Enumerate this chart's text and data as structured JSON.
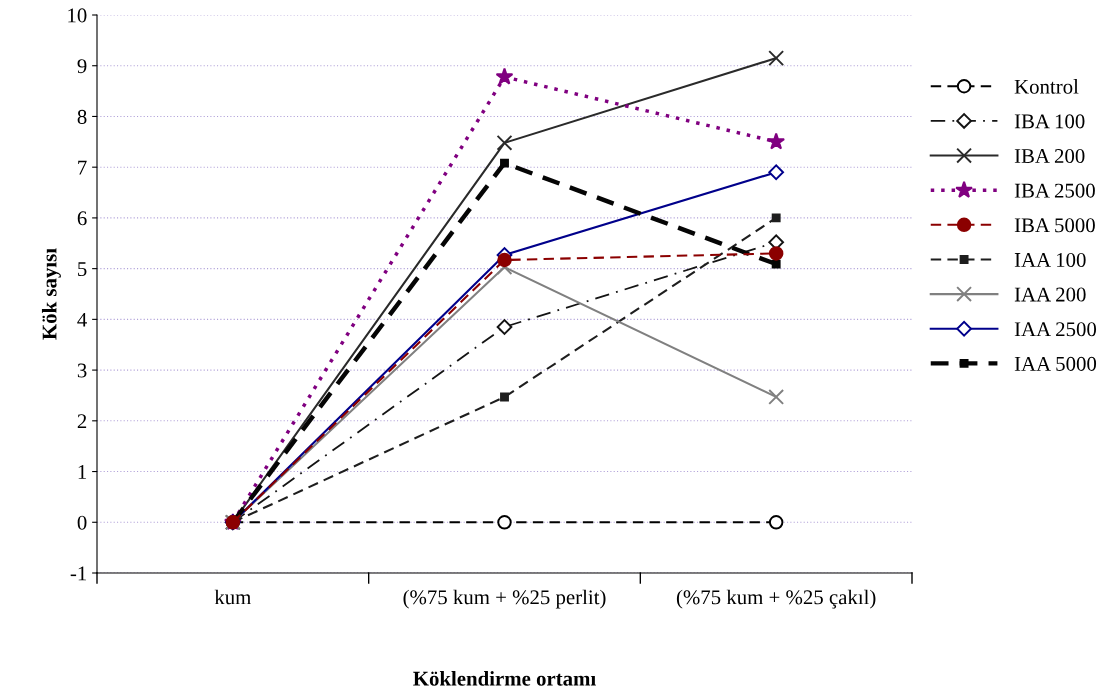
{
  "chart_data": {
    "type": "line",
    "xlabel": "Köklendirme ortamı",
    "ylabel": "Kök sayısı",
    "categories": [
      "kum",
      "(%75 kum + %25 perlit)",
      "(%75 kum + %25 çakıl)"
    ],
    "ylim": [
      -1,
      10
    ],
    "yticks": [
      -1,
      0,
      1,
      2,
      3,
      4,
      5,
      6,
      7,
      8,
      9,
      10
    ],
    "grid": "y",
    "legend": "right",
    "series": [
      {
        "name": "Kontrol",
        "color": "#000000",
        "values": [
          0,
          0,
          0
        ],
        "line_style": "dashed",
        "marker": "circle"
      },
      {
        "name": "IBA 100",
        "color": "#141414",
        "values": [
          0,
          3.85,
          5.52
        ],
        "line_style": "dashdot",
        "marker": "diamond"
      },
      {
        "name": "IBA 200",
        "color": "#2a2a2a",
        "values": [
          0,
          7.48,
          9.15
        ],
        "line_style": "solid",
        "marker": "cross"
      },
      {
        "name": "IBA 2500",
        "color": "#800080",
        "values": [
          0,
          8.78,
          7.5
        ],
        "line_style": "dotted",
        "marker": "star"
      },
      {
        "name": "IBA 5000",
        "color": "#8b0000",
        "values": [
          0,
          5.17,
          5.3
        ],
        "line_style": "dashed",
        "marker": "circle"
      },
      {
        "name": "IAA 100",
        "color": "#1e1e1e",
        "values": [
          0,
          2.47,
          6.0
        ],
        "line_style": "dashed",
        "marker": "square"
      },
      {
        "name": "IAA 200",
        "color": "#808080",
        "values": [
          0,
          5.03,
          2.47
        ],
        "line_style": "solid",
        "marker": "cross"
      },
      {
        "name": "IAA 2500",
        "color": "#00008b",
        "values": [
          0,
          5.27,
          6.9
        ],
        "line_style": "solid",
        "marker": "diamond"
      },
      {
        "name": "IAA 5000",
        "color": "#050505",
        "values": [
          0,
          7.08,
          5.09
        ],
        "line_style": "thick_dashed",
        "marker": "square"
      }
    ]
  }
}
